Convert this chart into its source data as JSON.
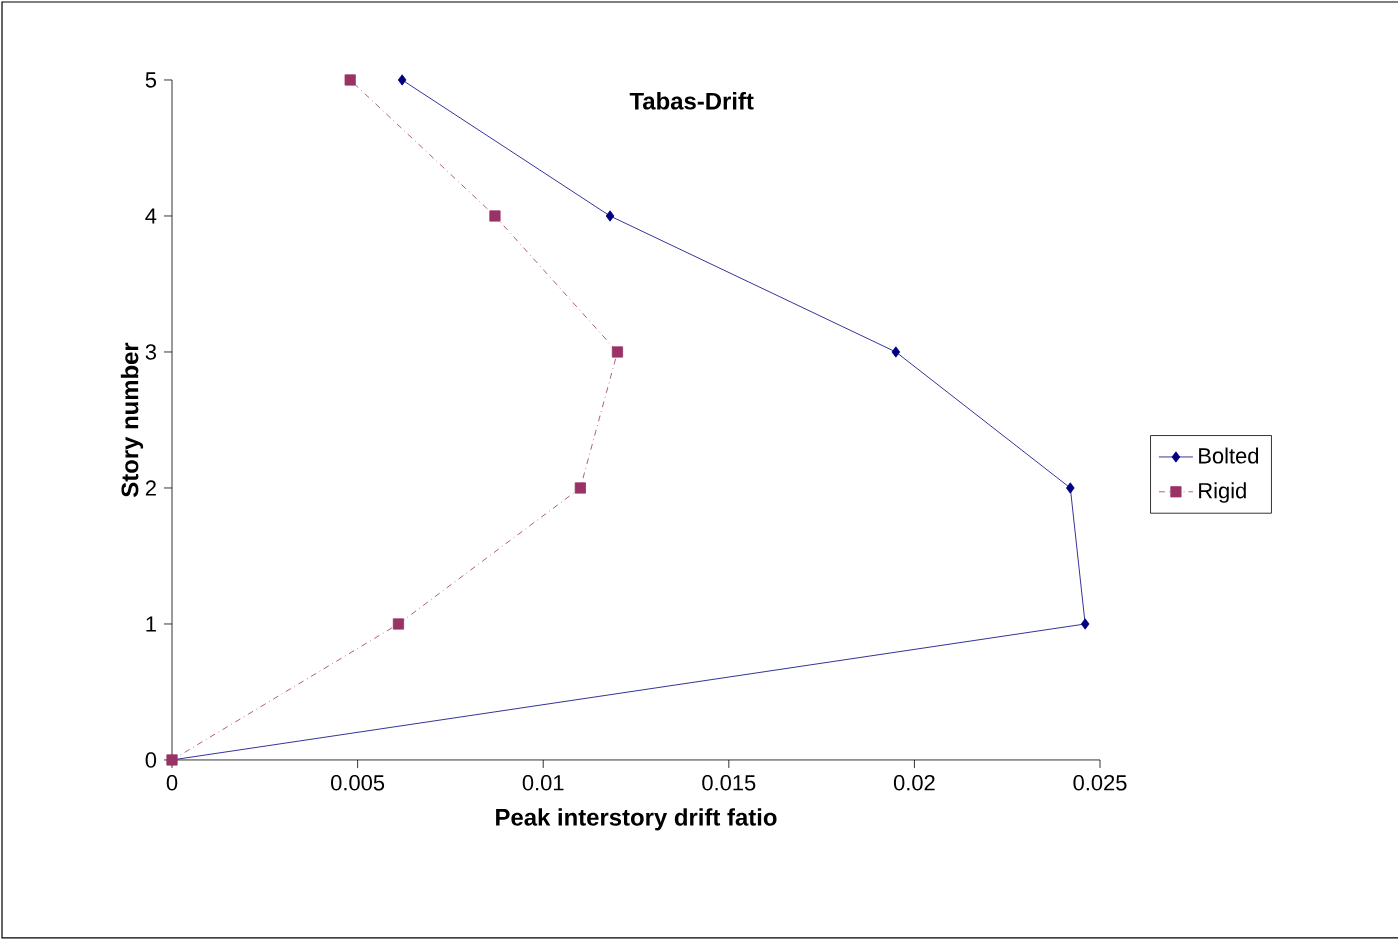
{
  "chart_data": {
    "type": "line",
    "title": "Tabas-Drift",
    "xlabel": "Peak interstory drift fatio",
    "ylabel": "Story number",
    "xlim": [
      0,
      0.025
    ],
    "ylim": [
      0,
      5
    ],
    "xticks": [
      0,
      0.005,
      0.01,
      0.015,
      0.02,
      0.025
    ],
    "yticks": [
      0,
      1,
      2,
      3,
      4,
      5
    ],
    "grid": false,
    "legend": "right",
    "series": [
      {
        "name": "Bolted",
        "color": "#000080",
        "marker": "diamond",
        "line_style": "solid",
        "x": [
          0,
          0.0246,
          0.0242,
          0.0195,
          0.0118,
          0.0062
        ],
        "values": [
          0,
          1,
          2,
          3,
          4,
          5
        ]
      },
      {
        "name": "Rigid",
        "color": "#993366",
        "marker": "square",
        "line_style": "dashed",
        "x": [
          0,
          0.0061,
          0.011,
          0.012,
          0.0087,
          0.0048
        ],
        "values": [
          0,
          1,
          2,
          3,
          4,
          5
        ]
      }
    ]
  }
}
